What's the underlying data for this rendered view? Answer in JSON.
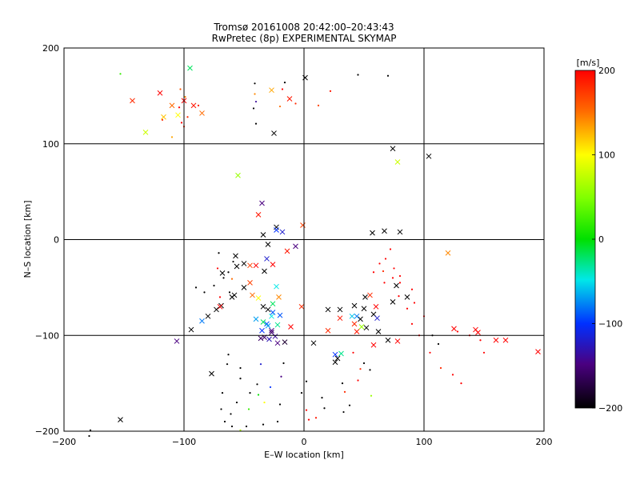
{
  "chart_data": {
    "type": "scatter",
    "title_line1": "Tromsø 20161008 20:42:00–20:43:43",
    "title_line2": "RwPretec (8p) EXPERIMENTAL SKYMAP",
    "xlabel": "E–W location [km]",
    "ylabel": "N–S location [km]",
    "xlim": [
      -200,
      200
    ],
    "ylim": [
      -200,
      200
    ],
    "xticks": [
      "−200",
      "−100",
      "0",
      "100",
      "200"
    ],
    "yticks": [
      "−200",
      "−100",
      "0",
      "100",
      "200"
    ],
    "grid_lines": [
      -100,
      0,
      100
    ],
    "colorbar": {
      "label": "[m/s]",
      "range": [
        -200,
        200
      ],
      "ticks": [
        "200",
        "100",
        "0",
        "−100",
        "−200"
      ],
      "colormap": "rainbow"
    },
    "crosses": [
      [
        -143,
        145,
        180
      ],
      [
        -120,
        153,
        200
      ],
      [
        -100,
        145,
        200
      ],
      [
        -92,
        140,
        190
      ],
      [
        -110,
        140,
        150
      ],
      [
        -105,
        130,
        100
      ],
      [
        -95,
        179,
        -20
      ],
      [
        -117,
        128,
        120
      ],
      [
        -132,
        112,
        80
      ],
      [
        -85,
        132,
        150
      ],
      [
        1,
        169,
        -200
      ],
      [
        -27,
        156,
        130
      ],
      [
        -12,
        147,
        190
      ],
      [
        -25,
        111,
        -200
      ],
      [
        -55,
        67,
        60
      ],
      [
        -35,
        38,
        -150
      ],
      [
        -38,
        26,
        190
      ],
      [
        -23,
        13,
        -200
      ],
      [
        -18,
        8,
        -120
      ],
      [
        -14,
        -12,
        190
      ],
      [
        -23,
        10,
        -100
      ],
      [
        -1,
        15,
        170
      ],
      [
        -7,
        -7,
        -150
      ],
      [
        -26,
        -26,
        200
      ],
      [
        -33,
        -33,
        -200
      ],
      [
        -45,
        -45,
        170
      ],
      [
        -50,
        -50,
        -200
      ],
      [
        -58,
        -58,
        -200
      ],
      [
        -69,
        -69,
        -200
      ],
      [
        -60,
        -60,
        -200
      ],
      [
        -70,
        -70,
        200
      ],
      [
        -80,
        -80,
        -200
      ],
      [
        -94,
        -94,
        -200
      ],
      [
        -85,
        -85,
        -80
      ],
      [
        -106,
        -106,
        -150
      ],
      [
        -73,
        -73,
        -200
      ],
      [
        -56,
        -28,
        -200
      ],
      [
        -68,
        -35,
        -200
      ],
      [
        -57,
        -17,
        -200
      ],
      [
        -50,
        -25,
        -200
      ],
      [
        -40,
        -27,
        200
      ],
      [
        -45,
        -27,
        170
      ],
      [
        -30,
        -5,
        -200
      ],
      [
        -34,
        5,
        -200
      ],
      [
        -31,
        -20,
        -120
      ],
      [
        -26,
        -76,
        -90
      ],
      [
        -31,
        -88,
        -90
      ],
      [
        -27,
        -95,
        -150
      ],
      [
        -33,
        -102,
        -160
      ],
      [
        -22,
        -108,
        -150
      ],
      [
        -16,
        -107,
        -180
      ],
      [
        -11,
        -91,
        200
      ],
      [
        -23,
        -49,
        -50
      ],
      [
        -21,
        -60,
        140
      ],
      [
        -26,
        -67,
        -20
      ],
      [
        -34,
        -70,
        -200
      ],
      [
        -38,
        -61,
        100
      ],
      [
        -27,
        -97,
        -160
      ],
      [
        -29,
        -104,
        -130
      ],
      [
        -36,
        -103,
        -160
      ],
      [
        -22,
        -89,
        -30
      ],
      [
        -34,
        -86,
        -20
      ],
      [
        -40,
        -83,
        -70
      ],
      [
        -30,
        -73,
        -200
      ],
      [
        -43,
        -58,
        150
      ],
      [
        -24,
        -101,
        -140
      ],
      [
        -27,
        -80,
        -50
      ],
      [
        -20,
        -79,
        -90
      ],
      [
        -30,
        -90,
        -70
      ],
      [
        -35,
        -95,
        -100
      ],
      [
        8,
        -108,
        -200
      ],
      [
        26,
        -120,
        -100
      ],
      [
        26,
        -128,
        -200
      ],
      [
        -77,
        -140,
        -200
      ],
      [
        -153,
        -188,
        -200
      ],
      [
        57,
        7,
        -200
      ],
      [
        67,
        9,
        -200
      ],
      [
        80,
        8,
        -200
      ],
      [
        74,
        -65,
        -200
      ],
      [
        86,
        -60,
        -200
      ],
      [
        77,
        -48,
        -200
      ],
      [
        58,
        -78,
        -200
      ],
      [
        52,
        -92,
        -200
      ],
      [
        47,
        -83,
        -200
      ],
      [
        44,
        -80,
        -80
      ],
      [
        40,
        -80,
        -60
      ],
      [
        50,
        -72,
        -200
      ],
      [
        61,
        -82,
        -120
      ],
      [
        60,
        -70,
        200
      ],
      [
        51,
        -60,
        -200
      ],
      [
        55,
        -58,
        180
      ],
      [
        44,
        -96,
        190
      ],
      [
        62,
        -96,
        -200
      ],
      [
        70,
        -105,
        -200
      ],
      [
        58,
        -110,
        200
      ],
      [
        78,
        -106,
        200
      ],
      [
        125,
        -93,
        200
      ],
      [
        143,
        -94,
        200
      ],
      [
        145,
        -97,
        200
      ],
      [
        160,
        -105,
        200
      ],
      [
        168,
        -105,
        200
      ],
      [
        195,
        -117,
        200
      ],
      [
        120,
        -14,
        140
      ],
      [
        104,
        87,
        -200
      ],
      [
        74,
        95,
        -200
      ],
      [
        78,
        81,
        80
      ],
      [
        31,
        -119,
        -30
      ],
      [
        28,
        -124,
        -200
      ],
      [
        20,
        -73,
        -200
      ],
      [
        30,
        -73,
        -200
      ],
      [
        -2,
        -70,
        180
      ],
      [
        42,
        -69,
        -200
      ],
      [
        48,
        -91,
        60
      ],
      [
        30,
        -82,
        190
      ],
      [
        42,
        -88,
        180
      ],
      [
        20,
        -95,
        180
      ]
    ],
    "dots": [
      [
        -153,
        173,
        20
      ],
      [
        -118,
        125,
        180
      ],
      [
        -104,
        138,
        200
      ],
      [
        -102,
        122,
        200
      ],
      [
        -100,
        118,
        180
      ],
      [
        -97,
        128,
        180
      ],
      [
        -110,
        107,
        130
      ],
      [
        -99,
        149,
        140
      ],
      [
        -103,
        157,
        160
      ],
      [
        -88,
        140,
        190
      ],
      [
        -16,
        164,
        -200
      ],
      [
        -41,
        163,
        -200
      ],
      [
        -40,
        144,
        -140
      ],
      [
        -42,
        137,
        -200
      ],
      [
        -18,
        157,
        200
      ],
      [
        -7,
        142,
        180
      ],
      [
        -20,
        139,
        150
      ],
      [
        -41,
        152,
        140
      ],
      [
        45,
        172,
        -200
      ],
      [
        70,
        171,
        -200
      ],
      [
        -40,
        121,
        -200
      ],
      [
        12,
        140,
        170
      ],
      [
        22,
        155,
        190
      ],
      [
        -63,
        -120,
        -200
      ],
      [
        -64,
        -130,
        -200
      ],
      [
        -68,
        -160,
        -200
      ],
      [
        -69,
        -177,
        -200
      ],
      [
        -36,
        -130,
        -120
      ],
      [
        -39,
        -151,
        -200
      ],
      [
        -45,
        -160,
        -200
      ],
      [
        -56,
        -170,
        -200
      ],
      [
        -61,
        -182,
        -200
      ],
      [
        -48,
        -195,
        -200
      ],
      [
        -34,
        -193,
        -200
      ],
      [
        -22,
        -190,
        -200
      ],
      [
        -20,
        -172,
        -200
      ],
      [
        -28,
        -154,
        -100
      ],
      [
        -19,
        -143,
        -150
      ],
      [
        -17,
        -129,
        -200
      ],
      [
        -33,
        -170,
        100
      ],
      [
        -38,
        -162,
        0
      ],
      [
        -46,
        -177,
        20
      ],
      [
        -53,
        -199,
        70
      ],
      [
        -60,
        -195,
        -200
      ],
      [
        -66,
        -190,
        -200
      ],
      [
        -178,
        -199,
        -200
      ],
      [
        -179,
        -205,
        -200
      ],
      [
        -53,
        -134,
        -200
      ],
      [
        -53,
        -145,
        -200
      ],
      [
        33,
        -180,
        -200
      ],
      [
        47,
        -135,
        180
      ],
      [
        45,
        -147,
        200
      ],
      [
        56,
        -163,
        60
      ],
      [
        41,
        -118,
        200
      ],
      [
        50,
        -129,
        -200
      ],
      [
        55,
        -136,
        -200
      ],
      [
        32,
        -150,
        -200
      ],
      [
        34,
        -159,
        180
      ],
      [
        38,
        -173,
        -200
      ],
      [
        2,
        -148,
        -200
      ],
      [
        -2,
        -160,
        -200
      ],
      [
        2,
        -178,
        200
      ],
      [
        4,
        -188,
        200
      ],
      [
        10,
        -186,
        190
      ],
      [
        15,
        -165,
        -200
      ],
      [
        17,
        -176,
        -200
      ],
      [
        107,
        -100,
        -200
      ],
      [
        112,
        -109,
        -200
      ],
      [
        138,
        -100,
        200
      ],
      [
        124,
        -141,
        200
      ],
      [
        131,
        -150,
        200
      ],
      [
        128,
        -96,
        200
      ],
      [
        114,
        -134,
        180
      ],
      [
        147,
        -105,
        200
      ],
      [
        150,
        -118,
        200
      ],
      [
        105,
        -118,
        200
      ],
      [
        96,
        -100,
        200
      ],
      [
        90,
        -88,
        200
      ],
      [
        100,
        -80,
        200
      ],
      [
        86,
        -72,
        200
      ],
      [
        90,
        -52,
        200
      ],
      [
        80,
        -45,
        200
      ],
      [
        80,
        -38,
        200
      ],
      [
        75,
        -30,
        200
      ],
      [
        72,
        -10,
        200
      ],
      [
        68,
        -20,
        200
      ],
      [
        63,
        -25,
        200
      ],
      [
        58,
        -34,
        200
      ],
      [
        66,
        -33,
        180
      ],
      [
        74,
        -40,
        200
      ],
      [
        67,
        -45,
        200
      ],
      [
        79,
        -59,
        200
      ],
      [
        92,
        -66,
        200
      ],
      [
        -83,
        -55,
        -200
      ],
      [
        -90,
        -50,
        -200
      ],
      [
        -75,
        -48,
        -200
      ],
      [
        -62,
        -55,
        -200
      ],
      [
        -70,
        -60,
        200
      ],
      [
        -60,
        -41,
        150
      ],
      [
        -67,
        -40,
        -200
      ],
      [
        -72,
        -30,
        200
      ],
      [
        -63,
        -34,
        -200
      ],
      [
        -59,
        -23,
        -200
      ],
      [
        -71,
        -14,
        -200
      ]
    ]
  }
}
